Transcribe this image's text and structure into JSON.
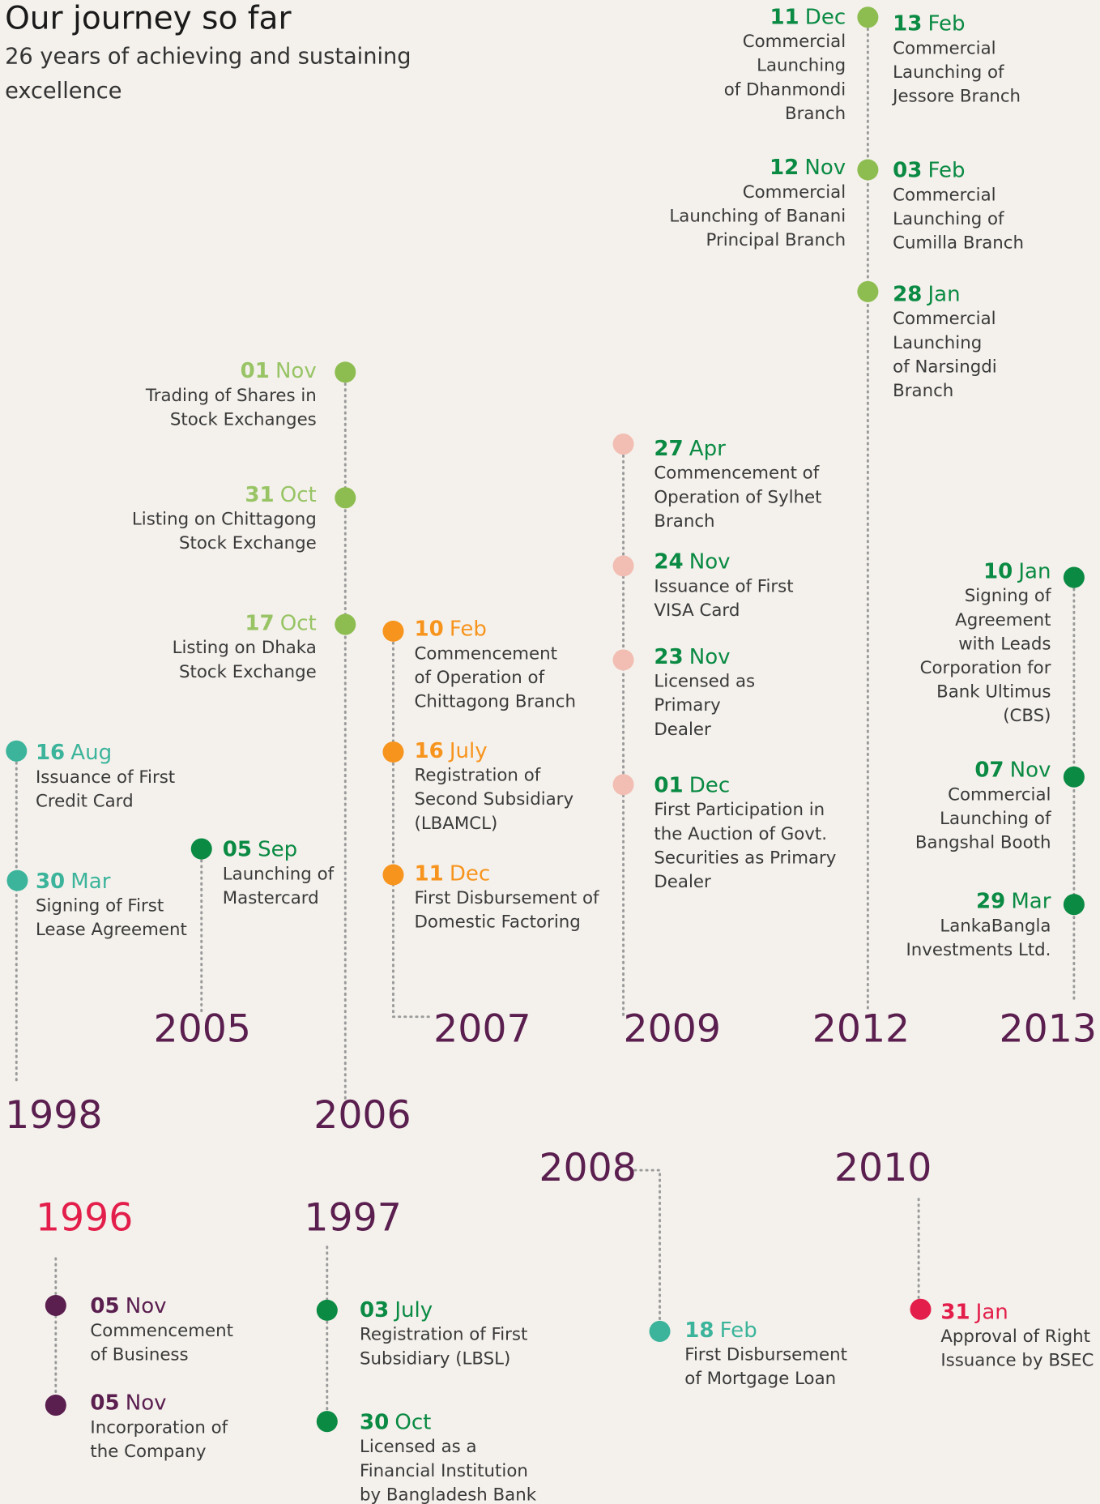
{
  "header": {
    "title": "Our journey so far",
    "subtitle": [
      "26 years of achieving and sustaining",
      "excellence"
    ]
  },
  "groups": [
    {
      "year": "1998",
      "year_color": "#5a1e4f",
      "dot_color": "#3cb49b",
      "date_color": "#3cb49b",
      "events": [
        {
          "day": "16",
          "month": "Aug",
          "lines": [
            "Issuance of First",
            "Credit Card"
          ]
        },
        {
          "day": "30",
          "month": "Mar",
          "lines": [
            "Signing of First",
            "Lease Agreement"
          ]
        }
      ]
    },
    {
      "year": "2005",
      "year_color": "#5a1e4f",
      "dot_color": "#0a8a43",
      "date_color": "#0a8a43",
      "events": [
        {
          "day": "05",
          "month": "Sep",
          "lines": [
            "Launching of",
            "Mastercard"
          ]
        }
      ]
    },
    {
      "year": "2006",
      "year_color": "#5a1e4f",
      "dot_color": "#8dbd50",
      "date_color": "#98c465",
      "events": [
        {
          "day": "01",
          "month": "Nov",
          "lines": [
            "Trading of Shares in",
            "Stock Exchanges"
          ]
        },
        {
          "day": "31",
          "month": "Oct",
          "lines": [
            "Listing on Chittagong",
            "Stock Exchange"
          ]
        },
        {
          "day": "17",
          "month": "Oct",
          "lines": [
            "Listing on Dhaka",
            "Stock Exchange"
          ]
        }
      ]
    },
    {
      "year": "2007",
      "year_color": "#5a1e4f",
      "dot_color": "#f7941d",
      "date_color": "#f7941d",
      "events": [
        {
          "day": "10",
          "month": "Feb",
          "lines": [
            "Commencement",
            "of Operation of",
            "Chittagong Branch"
          ]
        },
        {
          "day": "16",
          "month": "July",
          "lines": [
            "Registration of",
            "Second Subsidiary",
            "(LBAMCL)"
          ]
        },
        {
          "day": "11",
          "month": "Dec",
          "lines": [
            "First Disbursement of",
            "Domestic Factoring"
          ]
        }
      ]
    },
    {
      "year": "2009",
      "year_color": "#5a1e4f",
      "dot_color": "#f2bdb3",
      "date_color": "#0a8a43",
      "events": [
        {
          "day": "27",
          "month": "Apr",
          "lines": [
            "Commencement of",
            "Operation of Sylhet",
            "Branch"
          ]
        },
        {
          "day": "24",
          "month": "Nov",
          "lines": [
            "Issuance of First",
            "VISA Card"
          ]
        },
        {
          "day": "23",
          "month": "Nov",
          "lines": [
            "Licensed as",
            "Primary",
            "Dealer"
          ]
        },
        {
          "day": "01",
          "month": "Dec",
          "lines": [
            "First Participation in",
            "the Auction of Govt.",
            "Securities as Primary",
            "Dealer"
          ]
        }
      ]
    },
    {
      "year": "2012",
      "year_color": "#5a1e4f",
      "dot_color": "#8dbd50",
      "date_color": "#0a8a43",
      "events": [
        {
          "day": "11",
          "month": "Dec",
          "lines": [
            "Commercial",
            "Launching",
            "of Dhanmondi",
            "Branch"
          ]
        },
        {
          "day": "12",
          "month": "Nov",
          "lines": [
            "Commercial",
            "Launching of Banani",
            "Principal Branch"
          ]
        },
        {
          "day": "13",
          "month": "Feb",
          "lines": [
            "Commercial",
            "Launching of",
            "Jessore Branch"
          ]
        },
        {
          "day": "03",
          "month": "Feb",
          "lines": [
            "Commercial",
            "Launching of",
            "Cumilla Branch"
          ]
        },
        {
          "day": "28",
          "month": "Jan",
          "lines": [
            "Commercial",
            "Launching",
            "of Narsingdi",
            "Branch"
          ]
        }
      ]
    },
    {
      "year": "2013",
      "year_color": "#5a1e4f",
      "dot_color": "#0a8a43",
      "date_color": "#0a8a43",
      "events": [
        {
          "day": "10",
          "month": "Jan",
          "lines": [
            "Signing of",
            "Agreement",
            "with Leads",
            "Corporation for",
            "Bank Ultimus",
            "(CBS)"
          ]
        },
        {
          "day": "07",
          "month": "Nov",
          "lines": [
            "Commercial",
            "Launching of",
            "Bangshal Booth"
          ]
        },
        {
          "day": "29",
          "month": "Mar",
          "lines": [
            "LankaBangla",
            "Investments Ltd."
          ]
        }
      ]
    },
    {
      "year": "1996",
      "year_color": "#e31e4a",
      "dot_color": "#5a1e4f",
      "date_color": "#5a1e4f",
      "events": [
        {
          "day": "05",
          "month": "Nov",
          "lines": [
            "Commencement",
            "of Business"
          ]
        },
        {
          "day": "05",
          "month": "Nov",
          "lines": [
            "Incorporation of",
            "the Company"
          ]
        }
      ]
    },
    {
      "year": "1997",
      "year_color": "#5a1e4f",
      "dot_color": "#0a8a43",
      "date_color": "#0a8a43",
      "events": [
        {
          "day": "03",
          "month": "July",
          "lines": [
            "Registration of First",
            "Subsidiary (LBSL)"
          ]
        },
        {
          "day": "30",
          "month": "Oct",
          "lines": [
            "Licensed as a",
            "Financial Institution",
            "by Bangladesh Bank"
          ]
        }
      ]
    },
    {
      "year": "2008",
      "year_color": "#5a1e4f",
      "dot_color": "#3cb49b",
      "date_color": "#3cb49b",
      "events": [
        {
          "day": "18",
          "month": "Feb",
          "lines": [
            "First Disbursement",
            "of Mortgage Loan"
          ]
        }
      ]
    },
    {
      "year": "2010",
      "year_color": "#5a1e4f",
      "dot_color": "#e31e4a",
      "date_color": "#e31e4a",
      "events": [
        {
          "day": "31",
          "month": "Jan",
          "lines": [
            "Approval of Right",
            "Issuance by BSEC"
          ]
        }
      ]
    }
  ]
}
